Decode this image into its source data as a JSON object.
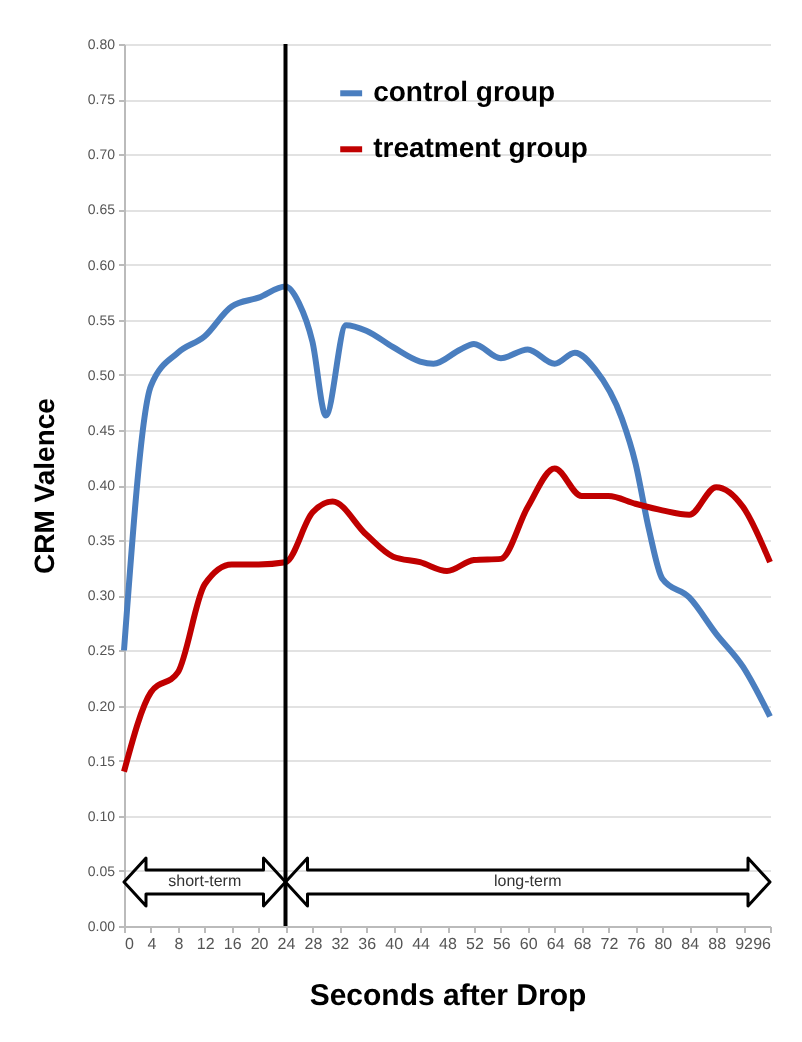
{
  "chart_data": {
    "type": "line",
    "xlabel": "Seconds after Drop",
    "ylabel": "CRM Valence",
    "xlim": [
      0,
      96
    ],
    "xticks": [
      0,
      4,
      8,
      12,
      16,
      20,
      24,
      28,
      32,
      36,
      40,
      44,
      48,
      52,
      56,
      60,
      64,
      68,
      72,
      76,
      80,
      84,
      88,
      92,
      96
    ],
    "ylim": [
      0,
      0.8
    ],
    "yticks": [
      {
        "value": 0,
        "label": "0.00"
      },
      {
        "value": 0.05,
        "label": "0.05"
      },
      {
        "value": 0.1,
        "label": "0.10"
      },
      {
        "value": 0.15,
        "label": "0.15"
      },
      {
        "value": 0.2,
        "label": "0.20"
      },
      {
        "value": 0.25,
        "label": "0.25"
      },
      {
        "value": 0.3,
        "label": "0.30"
      },
      {
        "value": 0.35,
        "label": "0.35"
      },
      {
        "value": 0.4,
        "label": "0.40"
      },
      {
        "value": 0.45,
        "label": "0.45"
      },
      {
        "value": 0.5,
        "label": "0.50"
      },
      {
        "value": 0.55,
        "label": "0.55"
      },
      {
        "value": 0.6,
        "label": "0.60"
      },
      {
        "value": 0.65,
        "label": "0.65"
      },
      {
        "value": 0.7,
        "label": "0.70"
      },
      {
        "value": 0.75,
        "label": "0.75"
      },
      {
        "value": 0.8,
        "label": "0.80"
      }
    ],
    "series": [
      {
        "name": "control group",
        "color": "#4a7ebf",
        "x": [
          0,
          4,
          8,
          12,
          16,
          20,
          24,
          26,
          28,
          30,
          33,
          36,
          40,
          44,
          46,
          50,
          52,
          56,
          60,
          64,
          67,
          70,
          74,
          76,
          78,
          80,
          84,
          88,
          92,
          96
        ],
        "values": [
          0.25,
          0.49,
          0.52,
          0.535,
          0.562,
          0.57,
          0.58,
          0.565,
          0.53,
          0.463,
          0.545,
          0.54,
          0.525,
          0.512,
          0.51,
          0.523,
          0.528,
          0.515,
          0.523,
          0.51,
          0.52,
          0.505,
          0.46,
          0.42,
          0.36,
          0.315,
          0.298,
          0.265,
          0.235,
          0.19
        ]
      },
      {
        "name": "treatment group",
        "color": "#c00000",
        "x": [
          0,
          4,
          8,
          12,
          16,
          20,
          24,
          28,
          31,
          36,
          40,
          44,
          48,
          52,
          56,
          60,
          64,
          68,
          72,
          76,
          80,
          84,
          88,
          92,
          96
        ],
        "values": [
          0.14,
          0.212,
          0.23,
          0.31,
          0.328,
          0.328,
          0.33,
          0.375,
          0.385,
          0.355,
          0.335,
          0.33,
          0.322,
          0.332,
          0.333,
          0.38,
          0.415,
          0.39,
          0.39,
          0.383,
          0.377,
          0.373,
          0.398,
          0.38,
          0.33
        ]
      }
    ],
    "ref_lines": [
      {
        "axis": "x",
        "value": 24,
        "color": "#000000"
      }
    ],
    "annotations": [
      "short-term",
      "long-term"
    ],
    "grid": "y",
    "legend": "top",
    "line_style": "solid",
    "marker": "none"
  }
}
